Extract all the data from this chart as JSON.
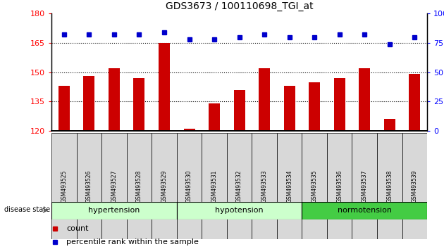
{
  "title": "GDS3673 / 100110698_TGI_at",
  "categories": [
    "GSM493525",
    "GSM493526",
    "GSM493527",
    "GSM493528",
    "GSM493529",
    "GSM493530",
    "GSM493531",
    "GSM493532",
    "GSM493533",
    "GSM493534",
    "GSM493535",
    "GSM493536",
    "GSM493537",
    "GSM493538",
    "GSM493539"
  ],
  "bar_values": [
    143,
    148,
    152,
    147,
    165,
    121,
    134,
    141,
    152,
    143,
    145,
    147,
    152,
    126,
    149
  ],
  "dot_values": [
    82,
    82,
    82,
    82,
    84,
    78,
    78,
    80,
    82,
    80,
    80,
    82,
    82,
    74,
    80
  ],
  "bar_color": "#cc0000",
  "dot_color": "#0000cc",
  "ylim_left": [
    120,
    180
  ],
  "ylim_right": [
    0,
    100
  ],
  "yticks_left": [
    120,
    135,
    150,
    165,
    180
  ],
  "yticks_right": [
    0,
    25,
    50,
    75,
    100
  ],
  "groups": [
    {
      "label": "hypertension",
      "start": 0,
      "end": 5,
      "facecolor": "#ccffcc"
    },
    {
      "label": "hypotension",
      "start": 5,
      "end": 10,
      "facecolor": "#ccffcc"
    },
    {
      "label": "normotension",
      "start": 10,
      "end": 15,
      "facecolor": "#66dd66"
    }
  ],
  "disease_state_label": "disease state",
  "legend_count_label": "count",
  "legend_percentile_label": "percentile rank within the sample",
  "bar_bottom": 120,
  "grid_lines": [
    135,
    150,
    165
  ],
  "xticklabel_bg": "#dddddd",
  "plot_bg": "white"
}
